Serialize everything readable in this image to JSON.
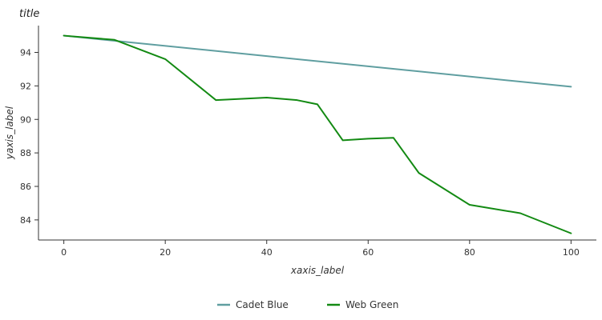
{
  "chart_data": {
    "type": "line",
    "title": "title",
    "xlabel": "xaxis_label",
    "ylabel": "yaxis_label",
    "xlim": [
      -5,
      105
    ],
    "ylim": [
      82.8,
      95.6
    ],
    "xticks": [
      0,
      20,
      40,
      60,
      80,
      100
    ],
    "yticks": [
      84,
      86,
      88,
      90,
      92,
      94
    ],
    "x_tick_labels": [
      "0",
      "20",
      "40",
      "60",
      "80",
      "100"
    ],
    "y_tick_labels": [
      "84",
      "86",
      "88",
      "90",
      "92",
      "94"
    ],
    "grid": false,
    "legend": {
      "position": "bottom"
    },
    "series": [
      {
        "name": "Cadet Blue",
        "color": "#5f9ea0",
        "x": [
          0,
          100
        ],
        "y": [
          95.0,
          91.95
        ]
      },
      {
        "name": "Web Green",
        "color": "#138a13",
        "x": [
          0,
          10,
          20,
          30,
          40,
          46,
          50,
          55,
          60,
          65,
          70,
          80,
          90,
          100
        ],
        "y": [
          95.0,
          94.75,
          93.6,
          91.15,
          91.3,
          91.15,
          90.9,
          88.75,
          88.85,
          88.9,
          86.8,
          84.9,
          84.4,
          83.2
        ]
      }
    ]
  }
}
